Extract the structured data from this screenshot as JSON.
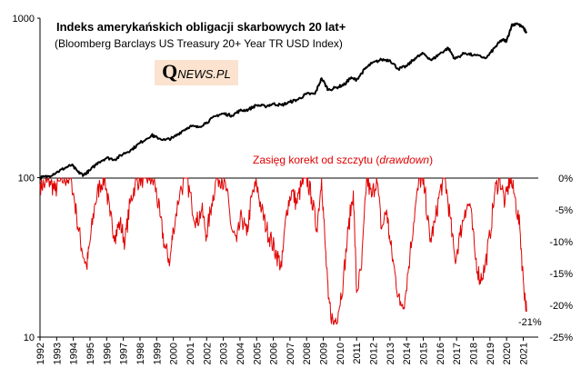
{
  "chart_data": [
    {
      "type": "line",
      "title": "Indeks amerykańskich obligacji skarbowych 20 lat+",
      "subtitle": "(Bloomberg Barclays US Treasury 20+ Year TR USD Index)",
      "scale": "log",
      "ylim": [
        10,
        1000
      ],
      "ytick_labels": [
        "1000",
        "100",
        "10"
      ],
      "xtick_labels": [
        "1992",
        "1993",
        "1994",
        "1995",
        "1996",
        "1997",
        "1998",
        "1999",
        "2000",
        "2001",
        "2002",
        "2003",
        "2004",
        "2005",
        "2006",
        "2007",
        "2008",
        "2009",
        "2010",
        "2011",
        "2012",
        "2013",
        "2014",
        "2015",
        "2016",
        "2017",
        "2018",
        "2019",
        "2020",
        "2021"
      ],
      "line_color": "#000000",
      "series": [
        {
          "x": [
            1992.0,
            1992.5,
            1993.0,
            1993.5,
            1993.9,
            1994.3,
            1994.6,
            1995.0,
            1995.5,
            1996.0,
            1996.5,
            1997.0,
            1997.5,
            1998.0,
            1998.7,
            1998.9,
            1999.5,
            2000.0,
            2000.5,
            2001.0,
            2001.5,
            2002.0,
            2002.6,
            2003.0,
            2003.5,
            2004.0,
            2004.5,
            2005.0,
            2005.5,
            2006.0,
            2006.5,
            2007.0,
            2007.5,
            2008.0,
            2008.5,
            2008.9,
            2009.3,
            2009.8,
            2010.3,
            2010.6,
            2011.0,
            2011.5,
            2011.9,
            2012.5,
            2013.0,
            2013.5,
            2014.0,
            2014.5,
            2015.0,
            2015.5,
            2016.0,
            2016.5,
            2016.9,
            2017.5,
            2018.0,
            2018.8,
            2019.3,
            2019.7,
            2020.0,
            2020.3,
            2020.6,
            2021.0,
            2021.2
          ],
          "y": [
            100,
            102,
            108,
            115,
            120,
            108,
            104,
            111,
            125,
            133,
            130,
            141,
            150,
            165,
            185,
            180,
            172,
            178,
            195,
            210,
            207,
            222,
            245,
            252,
            245,
            263,
            267,
            285,
            280,
            290,
            285,
            298,
            310,
            335,
            335,
            420,
            355,
            368,
            385,
            420,
            412,
            480,
            520,
            550,
            545,
            480,
            500,
            560,
            600,
            545,
            600,
            650,
            555,
            605,
            585,
            565,
            655,
            730,
            720,
            900,
            930,
            870,
            810
          ]
        }
      ]
    },
    {
      "type": "area",
      "title": "Zasięg korekt od szczytu (drawdown)",
      "title_main": "Zasięg korekt od szczytu (",
      "title_italic": "drawdown",
      "title_close": ")",
      "ylim": [
        -25,
        0
      ],
      "ytick_labels": [
        "0%",
        "-5%",
        "-10%",
        "-15%",
        "-20%",
        "-25%"
      ],
      "annotation": "-21%",
      "line_color": "#e00000",
      "series": [
        {
          "x": [
            1992.0,
            1992.3,
            1992.6,
            1992.9,
            1993.2,
            1993.6,
            1993.9,
            1994.2,
            1994.5,
            1994.8,
            1995.0,
            1995.3,
            1995.6,
            1995.9,
            1996.2,
            1996.5,
            1996.8,
            1997.1,
            1997.4,
            1997.7,
            1998.0,
            1998.3,
            1998.6,
            1998.9,
            1999.2,
            1999.5,
            1999.8,
            2000.0,
            2000.4,
            2000.8,
            2001.1,
            2001.4,
            2001.7,
            2002.0,
            2002.3,
            2002.6,
            2002.9,
            2003.2,
            2003.5,
            2003.8,
            2004.1,
            2004.4,
            2004.7,
            2005.0,
            2005.3,
            2005.6,
            2005.9,
            2006.2,
            2006.5,
            2006.8,
            2007.1,
            2007.4,
            2007.7,
            2008.0,
            2008.3,
            2008.6,
            2008.9,
            2009.1,
            2009.3,
            2009.6,
            2009.9,
            2010.2,
            2010.5,
            2010.8,
            2011.0,
            2011.3,
            2011.6,
            2011.9,
            2012.2,
            2012.5,
            2012.8,
            2013.0,
            2013.3,
            2013.6,
            2013.9,
            2014.2,
            2014.5,
            2014.8,
            2015.1,
            2015.4,
            2015.7,
            2016.0,
            2016.3,
            2016.6,
            2016.9,
            2017.2,
            2017.5,
            2017.8,
            2018.1,
            2018.4,
            2018.7,
            2019.0,
            2019.3,
            2019.6,
            2019.9,
            2020.2,
            2020.5,
            2020.8,
            2021.0,
            2021.2
          ],
          "y": [
            -1,
            -1,
            -0.5,
            -2,
            -0.5,
            0,
            -0.5,
            -6,
            -11,
            -14,
            -10,
            -4,
            -1,
            0,
            -6,
            -9,
            -7,
            -10,
            -4,
            -1,
            0,
            0,
            0,
            -1,
            -6,
            -11,
            -13,
            -8,
            -2,
            0,
            -4,
            -7,
            -5,
            -9,
            -4,
            0,
            0,
            -2,
            -8,
            -10,
            -6,
            -9,
            -3,
            -1,
            -5,
            -8,
            -10,
            -12,
            -14,
            -5,
            -2,
            -4,
            -1,
            0,
            -3,
            -8,
            0,
            -10,
            -19,
            -23,
            -21,
            -16,
            -8,
            -2,
            -18,
            -14,
            0,
            -3,
            0,
            -8,
            -5,
            -10,
            -15,
            -20,
            -19,
            -12,
            -5,
            0,
            -2,
            -10,
            -7,
            -2,
            0,
            -6,
            -13,
            -9,
            -5,
            -4,
            -12,
            -16,
            -14,
            -9,
            -2,
            0,
            -4,
            0,
            -3,
            -8,
            -16,
            -21
          ]
        }
      ]
    }
  ],
  "logo": {
    "q": "Q",
    "rest": "NEWS.PL"
  }
}
